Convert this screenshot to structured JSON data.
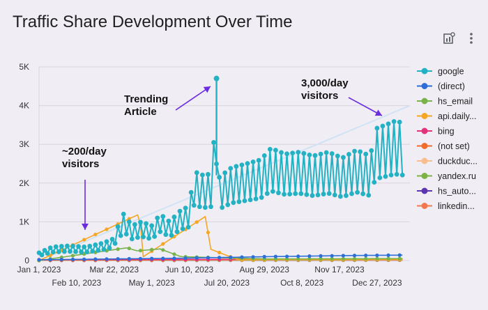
{
  "title": "Traffic Share Development Over Time",
  "toolbar": {
    "insights_icon": "chart-insights-icon",
    "menu_icon": "more-vert-icon"
  },
  "chart_data": {
    "type": "line",
    "title": "Traffic Share Development Over Time",
    "x_start": "2023-01-01",
    "x_end": "2024-01-31",
    "ylim": [
      0,
      5000
    ],
    "yticks": [
      {
        "v": 0,
        "label": "0"
      },
      {
        "v": 1000,
        "label": "1K"
      },
      {
        "v": 2000,
        "label": "2K"
      },
      {
        "v": 3000,
        "label": "3K"
      },
      {
        "v": 4000,
        "label": "4K"
      },
      {
        "v": 5000,
        "label": "5K"
      }
    ],
    "xticks_top": [
      {
        "date": "2023-01-01",
        "label": "Jan 1, 2023"
      },
      {
        "date": "2023-03-22",
        "label": "Mar 22, 2023"
      },
      {
        "date": "2023-06-10",
        "label": "Jun 10, 2023"
      },
      {
        "date": "2023-08-29",
        "label": "Aug 29, 2023"
      },
      {
        "date": "2023-11-17",
        "label": "Nov 17, 2023"
      }
    ],
    "xticks_bottom": [
      {
        "date": "2023-02-10",
        "label": "Feb 10, 2023"
      },
      {
        "date": "2023-05-01",
        "label": "May 1, 2023"
      },
      {
        "date": "2023-07-20",
        "label": "Jul 20, 2023"
      },
      {
        "date": "2023-10-08",
        "label": "Oct 8, 2023"
      },
      {
        "date": "2023-12-27",
        "label": "Dec 27, 2023"
      }
    ],
    "grid": true,
    "legend_position": "right",
    "series": [
      {
        "name": "google",
        "color": "#22b2c4",
        "peak_date": "2023-07-09",
        "peak_value": 4700,
        "points": [
          [
            "2023-01-01",
            200
          ],
          [
            "2023-01-15",
            350
          ],
          [
            "2023-02-01",
            380
          ],
          [
            "2023-02-20",
            350
          ],
          [
            "2023-03-10",
            450
          ],
          [
            "2023-03-20",
            550
          ],
          [
            "2023-04-01",
            1200
          ],
          [
            "2023-04-10",
            900
          ],
          [
            "2023-04-20",
            1000
          ],
          [
            "2023-05-01",
            900
          ],
          [
            "2023-05-10",
            1200
          ],
          [
            "2023-05-20",
            1000
          ],
          [
            "2023-06-01",
            1300
          ],
          [
            "2023-06-10",
            1400
          ],
          [
            "2023-06-15",
            2300
          ],
          [
            "2023-06-25",
            2200
          ],
          [
            "2023-07-05",
            2250
          ],
          [
            "2023-07-08",
            4650
          ],
          [
            "2023-07-12",
            2150
          ],
          [
            "2023-07-25",
            2400
          ],
          [
            "2023-08-10",
            2500
          ],
          [
            "2023-08-25",
            2600
          ],
          [
            "2023-09-05",
            2900
          ],
          [
            "2023-09-20",
            2750
          ],
          [
            "2023-10-05",
            2800
          ],
          [
            "2023-10-20",
            2700
          ],
          [
            "2023-11-05",
            2800
          ],
          [
            "2023-11-20",
            2650
          ],
          [
            "2023-12-05",
            2850
          ],
          [
            "2023-12-20",
            2700
          ],
          [
            "2023-12-25",
            3400
          ],
          [
            "2024-01-05",
            3500
          ],
          [
            "2024-01-15",
            3600
          ],
          [
            "2024-01-25",
            3550
          ]
        ]
      },
      {
        "name": "(direct)",
        "color": "#2d6fd8",
        "points": [
          [
            "2023-01-01",
            20
          ],
          [
            "2023-06-01",
            60
          ],
          [
            "2023-09-01",
            100
          ],
          [
            "2023-12-01",
            130
          ],
          [
            "2024-01-25",
            140
          ]
        ]
      },
      {
        "name": "hs_email",
        "color": "#78b24a",
        "points": [
          [
            "2023-01-01",
            0
          ],
          [
            "2023-04-05",
            330
          ],
          [
            "2023-04-15",
            250
          ],
          [
            "2023-05-10",
            300
          ],
          [
            "2023-06-01",
            100
          ],
          [
            "2023-09-01",
            40
          ],
          [
            "2024-01-25",
            50
          ]
        ]
      },
      {
        "name": "api.daily...",
        "color": "#f5a623",
        "points": [
          [
            "2023-01-01",
            0
          ],
          [
            "2023-04-18",
            1200
          ],
          [
            "2023-04-22",
            100
          ],
          [
            "2023-06-28",
            1150
          ],
          [
            "2023-07-02",
            300
          ],
          [
            "2023-08-01",
            20
          ],
          [
            "2024-01-25",
            20
          ]
        ]
      },
      {
        "name": "bing",
        "color": "#e3317a",
        "points": [
          [
            "2023-01-01",
            20
          ],
          [
            "2024-01-25",
            40
          ]
        ]
      },
      {
        "name": "(not set)",
        "color": "#f26b2a",
        "points": [
          [
            "2023-01-01",
            10
          ],
          [
            "2024-01-25",
            30
          ]
        ]
      },
      {
        "name": "duckduc...",
        "color": "#f9bc8c",
        "points": [
          [
            "2023-01-01",
            10
          ],
          [
            "2024-01-25",
            20
          ]
        ]
      },
      {
        "name": "yandex.ru",
        "color": "#7cb342",
        "points": [
          [
            "2023-01-01",
            5
          ],
          [
            "2024-01-25",
            15
          ]
        ]
      },
      {
        "name": "hs_auto...",
        "color": "#5e35b1",
        "points": [
          [
            "2023-01-01",
            5
          ],
          [
            "2024-01-25",
            10
          ]
        ]
      },
      {
        "name": "linkedin...",
        "color": "#f4784d",
        "points": [
          [
            "2023-01-01",
            5
          ],
          [
            "2024-01-25",
            10
          ]
        ]
      }
    ],
    "trendline": {
      "color": "#cfe3f5",
      "points": [
        [
          "2023-01-01",
          0
        ],
        [
          "2024-01-31",
          4000
        ]
      ]
    },
    "annotations": [
      {
        "lines": [
          "~200/day",
          "visitors"
        ]
      },
      {
        "lines": [
          "Trending",
          "Article"
        ]
      },
      {
        "lines": [
          "3,000/day",
          "visitors"
        ]
      }
    ]
  }
}
